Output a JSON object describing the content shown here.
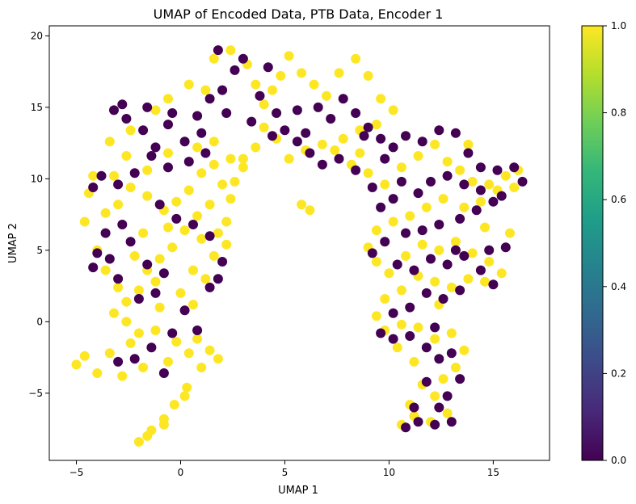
{
  "chart_data": {
    "type": "scatter",
    "title": "UMAP of Encoded Data, PTB Data, Encoder 1",
    "xlabel": "UMAP 1",
    "ylabel": "UMAP 2",
    "xlim": [
      -6.3,
      17.7
    ],
    "ylim": [
      -9.7,
      20.7
    ],
    "xticks": [
      -5,
      0,
      5,
      10,
      15
    ],
    "yticks": [
      -5,
      0,
      5,
      10,
      15,
      20
    ],
    "grid": false,
    "legend": "none",
    "colorbar": {
      "range": [
        0.0,
        1.0
      ],
      "ticks": [
        0.0,
        0.2,
        0.4,
        0.6,
        0.8,
        1.0
      ],
      "colormap": "viridis",
      "stops": [
        "#440154",
        "#482878",
        "#3e4989",
        "#31688e",
        "#26828e",
        "#1f9e89",
        "#35b779",
        "#6ece58",
        "#b5de2b",
        "#fde725"
      ]
    },
    "class_colors": {
      "0": "#440154",
      "1": "#fde725"
    },
    "series": [
      {
        "label_value": 1,
        "points": [
          [
            -5.0,
            -3.0
          ],
          [
            -4.6,
            -2.4
          ],
          [
            -4.0,
            -3.6
          ],
          [
            -3.4,
            -2.2
          ],
          [
            -2.8,
            -3.8
          ],
          [
            -2.4,
            -1.5
          ],
          [
            -1.8,
            -3.2
          ],
          [
            -1.2,
            -0.6
          ],
          [
            -0.6,
            -2.8
          ],
          [
            -0.2,
            -1.4
          ],
          [
            0.4,
            -2.2
          ],
          [
            1.0,
            -3.2
          ],
          [
            0.8,
            -1.2
          ],
          [
            0.3,
            -4.6
          ],
          [
            -0.3,
            -5.8
          ],
          [
            -0.8,
            -6.8
          ],
          [
            -1.4,
            -7.6
          ],
          [
            -2.0,
            -8.4
          ],
          [
            -1.6,
            -8.0
          ],
          [
            -0.8,
            -7.2
          ],
          [
            0.2,
            -5.2
          ],
          [
            1.4,
            -2.0
          ],
          [
            1.8,
            -2.6
          ],
          [
            -3.2,
            0.6
          ],
          [
            -2.6,
            1.4
          ],
          [
            -2.0,
            2.2
          ],
          [
            -1.6,
            3.6
          ],
          [
            -1.0,
            4.4
          ],
          [
            -0.4,
            5.2
          ],
          [
            0.2,
            6.4
          ],
          [
            0.8,
            7.4
          ],
          [
            1.4,
            8.2
          ],
          [
            2.0,
            9.6
          ],
          [
            2.4,
            11.4
          ],
          [
            1.6,
            11.0
          ],
          [
            1.0,
            10.4
          ],
          [
            0.4,
            9.2
          ],
          [
            -0.2,
            8.4
          ],
          [
            -0.8,
            7.8
          ],
          [
            -1.6,
            8.8
          ],
          [
            -2.4,
            9.4
          ],
          [
            -3.2,
            10.2
          ],
          [
            -4.2,
            10.2
          ],
          [
            -4.4,
            9.0
          ],
          [
            -4.6,
            7.0
          ],
          [
            -4.0,
            5.0
          ],
          [
            -3.6,
            3.6
          ],
          [
            -3.0,
            2.4
          ],
          [
            -2.6,
            0.0
          ],
          [
            -2.0,
            -0.8
          ],
          [
            -1.0,
            1.0
          ],
          [
            0.0,
            2.0
          ],
          [
            0.6,
            1.2
          ],
          [
            1.2,
            3.0
          ],
          [
            1.6,
            4.6
          ],
          [
            1.8,
            6.2
          ],
          [
            2.2,
            7.0
          ],
          [
            2.6,
            9.8
          ],
          [
            3.0,
            10.8
          ],
          [
            1.6,
            12.6
          ],
          [
            0.8,
            12.2
          ],
          [
            -0.6,
            11.8
          ],
          [
            -1.6,
            10.6
          ],
          [
            -2.6,
            11.6
          ],
          [
            -3.4,
            12.6
          ],
          [
            -2.4,
            13.4
          ],
          [
            -1.2,
            14.8
          ],
          [
            -0.6,
            15.6
          ],
          [
            0.4,
            16.6
          ],
          [
            1.2,
            16.2
          ],
          [
            1.6,
            18.4
          ],
          [
            2.4,
            19.0
          ],
          [
            3.2,
            18.0
          ],
          [
            3.6,
            16.6
          ],
          [
            4.0,
            15.2
          ],
          [
            4.4,
            16.2
          ],
          [
            4.8,
            17.2
          ],
          [
            5.2,
            18.6
          ],
          [
            5.8,
            17.4
          ],
          [
            6.4,
            16.6
          ],
          [
            7.0,
            15.8
          ],
          [
            7.6,
            17.4
          ],
          [
            8.4,
            18.4
          ],
          [
            9.0,
            17.2
          ],
          [
            9.6,
            15.6
          ],
          [
            10.2,
            14.8
          ],
          [
            9.4,
            13.8
          ],
          [
            8.6,
            13.4
          ],
          [
            7.8,
            12.8
          ],
          [
            6.8,
            12.4
          ],
          [
            6.0,
            12.0
          ],
          [
            5.2,
            11.4
          ],
          [
            4.6,
            12.8
          ],
          [
            4.0,
            13.6
          ],
          [
            3.6,
            12.2
          ],
          [
            3.0,
            11.4
          ],
          [
            5.8,
            8.2
          ],
          [
            6.2,
            7.8
          ],
          [
            7.4,
            12.0
          ],
          [
            8.2,
            11.0
          ],
          [
            9.0,
            10.4
          ],
          [
            9.8,
            9.6
          ],
          [
            10.6,
            10.8
          ],
          [
            11.4,
            11.6
          ],
          [
            12.2,
            12.4
          ],
          [
            12.8,
            11.2
          ],
          [
            13.4,
            10.6
          ],
          [
            14.0,
            9.8
          ],
          [
            14.8,
            9.6
          ],
          [
            15.6,
            10.2
          ],
          [
            16.2,
            10.6
          ],
          [
            15.2,
            9.2
          ],
          [
            14.4,
            8.4
          ],
          [
            13.6,
            8.0
          ],
          [
            12.6,
            8.6
          ],
          [
            11.8,
            8.0
          ],
          [
            11.0,
            7.4
          ],
          [
            10.2,
            7.0
          ],
          [
            9.4,
            6.4
          ],
          [
            9.0,
            5.2
          ],
          [
            9.4,
            4.2
          ],
          [
            10.0,
            3.4
          ],
          [
            10.8,
            4.6
          ],
          [
            11.6,
            5.4
          ],
          [
            12.4,
            5.0
          ],
          [
            13.2,
            5.6
          ],
          [
            14.0,
            4.8
          ],
          [
            14.8,
            4.2
          ],
          [
            15.4,
            3.4
          ],
          [
            14.6,
            2.8
          ],
          [
            13.8,
            3.0
          ],
          [
            13.0,
            2.4
          ],
          [
            12.2,
            2.8
          ],
          [
            11.4,
            3.2
          ],
          [
            10.6,
            2.2
          ],
          [
            9.8,
            1.6
          ],
          [
            9.4,
            0.4
          ],
          [
            9.8,
            -0.6
          ],
          [
            10.6,
            -0.2
          ],
          [
            11.4,
            -0.4
          ],
          [
            12.2,
            -1.2
          ],
          [
            13.0,
            -0.8
          ],
          [
            13.6,
            -2.0
          ],
          [
            13.2,
            -3.2
          ],
          [
            12.6,
            -4.0
          ],
          [
            12.2,
            -5.2
          ],
          [
            12.8,
            -6.4
          ],
          [
            12.0,
            -7.0
          ],
          [
            11.2,
            -6.6
          ],
          [
            10.6,
            -7.2
          ],
          [
            11.0,
            -5.8
          ],
          [
            11.6,
            -4.4
          ],
          [
            11.2,
            -2.8
          ],
          [
            10.4,
            -1.8
          ],
          [
            12.4,
            1.2
          ],
          [
            8.6,
            11.8
          ],
          [
            13.8,
            12.4
          ],
          [
            14.6,
            6.6
          ],
          [
            15.8,
            6.2
          ],
          [
            16.0,
            9.4
          ],
          [
            2.2,
            5.4
          ],
          [
            1.0,
            5.8
          ],
          [
            -0.6,
            6.6
          ],
          [
            -1.2,
            2.8
          ],
          [
            -2.2,
            4.6
          ],
          [
            -3.6,
            7.6
          ],
          [
            -1.8,
            6.2
          ],
          [
            0.6,
            3.6
          ],
          [
            2.4,
            8.6
          ],
          [
            -3.0,
            8.2
          ]
        ]
      },
      {
        "label_value": 0,
        "points": [
          [
            -3.2,
            14.8
          ],
          [
            -2.6,
            14.2
          ],
          [
            -1.8,
            13.4
          ],
          [
            -1.2,
            12.2
          ],
          [
            -0.6,
            13.8
          ],
          [
            0.2,
            12.6
          ],
          [
            0.8,
            14.4
          ],
          [
            1.4,
            15.6
          ],
          [
            2.0,
            16.2
          ],
          [
            2.6,
            17.6
          ],
          [
            1.8,
            19.0
          ],
          [
            3.0,
            18.4
          ],
          [
            4.2,
            17.8
          ],
          [
            3.8,
            15.8
          ],
          [
            4.6,
            14.6
          ],
          [
            5.0,
            13.4
          ],
          [
            5.6,
            14.8
          ],
          [
            6.0,
            13.2
          ],
          [
            6.6,
            15.0
          ],
          [
            7.2,
            14.2
          ],
          [
            7.8,
            15.6
          ],
          [
            8.4,
            14.6
          ],
          [
            9.0,
            13.6
          ],
          [
            9.6,
            12.8
          ],
          [
            10.2,
            12.2
          ],
          [
            10.8,
            13.0
          ],
          [
            11.6,
            12.6
          ],
          [
            12.4,
            13.4
          ],
          [
            13.2,
            13.2
          ],
          [
            13.8,
            11.8
          ],
          [
            14.4,
            10.8
          ],
          [
            15.2,
            10.6
          ],
          [
            16.0,
            10.8
          ],
          [
            16.4,
            9.8
          ],
          [
            15.4,
            8.8
          ],
          [
            14.2,
            7.8
          ],
          [
            13.4,
            7.2
          ],
          [
            12.4,
            6.8
          ],
          [
            11.6,
            6.4
          ],
          [
            10.8,
            6.2
          ],
          [
            10.2,
            8.6
          ],
          [
            9.6,
            8.0
          ],
          [
            9.2,
            9.4
          ],
          [
            8.4,
            10.6
          ],
          [
            7.6,
            11.4
          ],
          [
            6.8,
            11.0
          ],
          [
            6.2,
            11.8
          ],
          [
            5.6,
            12.6
          ],
          [
            -3.8,
            10.2
          ],
          [
            -3.0,
            9.6
          ],
          [
            -2.2,
            10.4
          ],
          [
            -1.4,
            11.6
          ],
          [
            -0.6,
            10.8
          ],
          [
            0.4,
            11.2
          ],
          [
            1.2,
            11.8
          ],
          [
            -1.0,
            8.2
          ],
          [
            -0.2,
            7.2
          ],
          [
            0.6,
            6.8
          ],
          [
            1.4,
            6.0
          ],
          [
            2.0,
            4.2
          ],
          [
            -0.8,
            3.4
          ],
          [
            -1.6,
            4.0
          ],
          [
            -2.4,
            5.6
          ],
          [
            -3.4,
            4.4
          ],
          [
            -4.2,
            3.8
          ],
          [
            -3.0,
            3.0
          ],
          [
            -2.0,
            1.6
          ],
          [
            -1.2,
            2.0
          ],
          [
            0.2,
            0.8
          ],
          [
            0.8,
            -0.6
          ],
          [
            1.4,
            2.4
          ],
          [
            1.8,
            3.0
          ],
          [
            -0.4,
            -0.8
          ],
          [
            -1.4,
            -1.8
          ],
          [
            -2.2,
            -2.6
          ],
          [
            -3.0,
            -2.8
          ],
          [
            -0.8,
            -3.6
          ],
          [
            9.2,
            4.8
          ],
          [
            9.8,
            5.6
          ],
          [
            10.4,
            4.0
          ],
          [
            11.2,
            3.6
          ],
          [
            12.0,
            4.4
          ],
          [
            12.8,
            4.0
          ],
          [
            13.6,
            4.6
          ],
          [
            14.4,
            3.6
          ],
          [
            15.0,
            2.6
          ],
          [
            13.4,
            2.2
          ],
          [
            12.6,
            1.6
          ],
          [
            11.8,
            2.0
          ],
          [
            11.0,
            1.0
          ],
          [
            10.2,
            0.6
          ],
          [
            9.6,
            -0.8
          ],
          [
            10.2,
            -1.2
          ],
          [
            11.0,
            -1.0
          ],
          [
            11.8,
            -1.8
          ],
          [
            12.4,
            -2.6
          ],
          [
            13.0,
            -2.2
          ],
          [
            13.4,
            -4.0
          ],
          [
            12.8,
            -5.2
          ],
          [
            12.4,
            -6.0
          ],
          [
            13.0,
            -7.0
          ],
          [
            12.2,
            -7.2
          ],
          [
            11.4,
            -7.0
          ],
          [
            10.8,
            -7.4
          ],
          [
            11.2,
            -6.0
          ],
          [
            11.8,
            -4.2
          ],
          [
            12.2,
            -0.4
          ],
          [
            8.8,
            13.0
          ],
          [
            9.8,
            11.4
          ],
          [
            10.6,
            9.8
          ],
          [
            11.4,
            9.0
          ],
          [
            12.0,
            9.8
          ],
          [
            12.8,
            10.2
          ],
          [
            13.6,
            9.6
          ],
          [
            14.4,
            9.2
          ],
          [
            15.0,
            8.4
          ],
          [
            15.6,
            5.2
          ],
          [
            14.8,
            5.0
          ],
          [
            13.2,
            5.0
          ],
          [
            4.4,
            13.0
          ],
          [
            3.4,
            14.0
          ],
          [
            2.2,
            14.6
          ],
          [
            1.0,
            13.2
          ],
          [
            -0.4,
            14.6
          ],
          [
            -1.6,
            15.0
          ],
          [
            -2.8,
            15.2
          ],
          [
            -4.2,
            9.4
          ],
          [
            -3.6,
            6.2
          ],
          [
            -4.0,
            4.8
          ],
          [
            -2.8,
            6.8
          ]
        ]
      }
    ]
  }
}
